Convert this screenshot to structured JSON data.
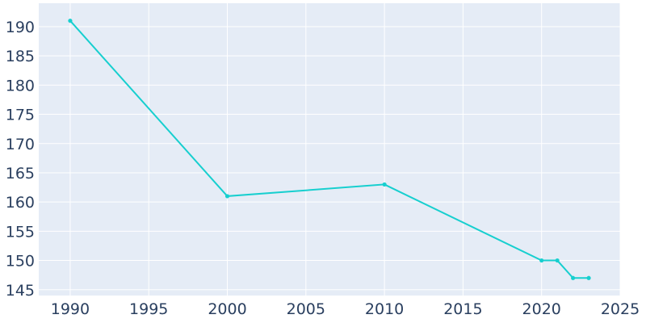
{
  "chart_data": {
    "type": "line",
    "title": "",
    "xlabel": "",
    "ylabel": "",
    "xlim": [
      1988,
      2025
    ],
    "ylim": [
      144,
      194
    ],
    "x_ticks": [
      1990,
      1995,
      2000,
      2005,
      2010,
      2015,
      2020,
      2025
    ],
    "y_ticks": [
      145,
      150,
      155,
      160,
      165,
      170,
      175,
      180,
      185,
      190
    ],
    "grid": true,
    "legend": "none",
    "plot_background": "#e5ecf6",
    "series": [
      {
        "color": "#17cfcf",
        "x": [
          1990,
          2000,
          2010,
          2020,
          2021,
          2022,
          2023
        ],
        "y": [
          191,
          161,
          163,
          150,
          150,
          147,
          147
        ]
      }
    ]
  }
}
